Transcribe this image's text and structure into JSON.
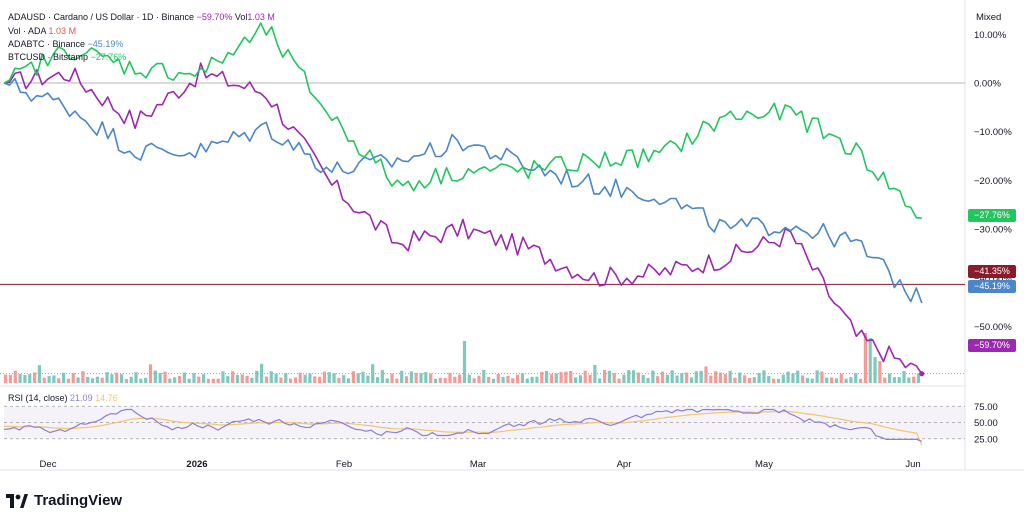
{
  "header": {
    "title_text": "ADAUSD · Cardano / US Dollar · 1D · Binance",
    "title_change": "−59.70%",
    "title_vol_label": "Vol",
    "title_vol_value": "1.03 M",
    "vol_label": "Vol · ADA",
    "vol_value": "1.03 M",
    "adabtc_label": "ADABTC · Binance",
    "adabtc_change": "−45.19%",
    "btcusd_label": "BTCUSD · Bitstamp",
    "btcusd_change": "−27.76%",
    "rsi_label": "RSI (14, close)",
    "rsi_value": "21.09",
    "rsi_ma_value": "14.76",
    "mode": "Mixed"
  },
  "brand": {
    "name": "TradingView"
  },
  "colors": {
    "adausd": "#9c27b0",
    "adabtc": "#4a86c8",
    "btcusd": "#22c55e",
    "vol_up": "#7fc8bd",
    "vol_down": "#f29b97",
    "rsi": "#8b7fd6",
    "rsi_ma": "#f2c66b",
    "hline": "#8b1a2a"
  },
  "markers": {
    "btcusd": "−27.76%",
    "hline": "−41.35%",
    "adabtc": "−45.19%",
    "adausd": "−59.70%"
  },
  "chart_data": {
    "type": "line",
    "y_ticks": [
      "10.00%",
      "0.00%",
      "−10.00%",
      "−20.00%",
      "−30.00%",
      "−40.00%",
      "−50.00%"
    ],
    "x_ticks": [
      "Dec",
      "2026",
      "Feb",
      "Mar",
      "Apr",
      "May",
      "Jun"
    ],
    "ylim": [
      -61,
      15
    ],
    "hline_value": -41.35,
    "x": [
      "Nov 20",
      "Dec 1",
      "Dec 15",
      "Jan 1",
      "Jan 15",
      "Feb 1",
      "Feb 15",
      "Mar 1",
      "Mar 15",
      "Apr 1",
      "Apr 15",
      "May 1",
      "May 15",
      "Jun 1",
      "Jun 10"
    ],
    "series": [
      {
        "name": "ADAUSD",
        "values": [
          0,
          2,
          -8,
          2,
          -2,
          -21,
          -33,
          -30,
          -34,
          -40,
          -39,
          -36,
          -31,
          -52,
          -59.7
        ]
      },
      {
        "name": "ADABTC",
        "values": [
          0,
          -5,
          -14,
          -14,
          -9,
          -18,
          -16,
          -12,
          -17,
          -21,
          -23,
          -30,
          -29,
          -33,
          -45.19
        ]
      },
      {
        "name": "BTCUSD",
        "values": [
          0,
          7,
          3,
          2,
          11,
          -7,
          -21,
          -18,
          -18,
          -16,
          -15,
          -7,
          -6,
          -14,
          -27.76
        ]
      }
    ],
    "volume": {
      "label": "Vol · ADA",
      "last": "1.03 M"
    },
    "rsi": {
      "label": "RSI (14, close)",
      "value": 21.09,
      "ma": 14.76,
      "levels": [
        25,
        50,
        75
      ]
    }
  }
}
